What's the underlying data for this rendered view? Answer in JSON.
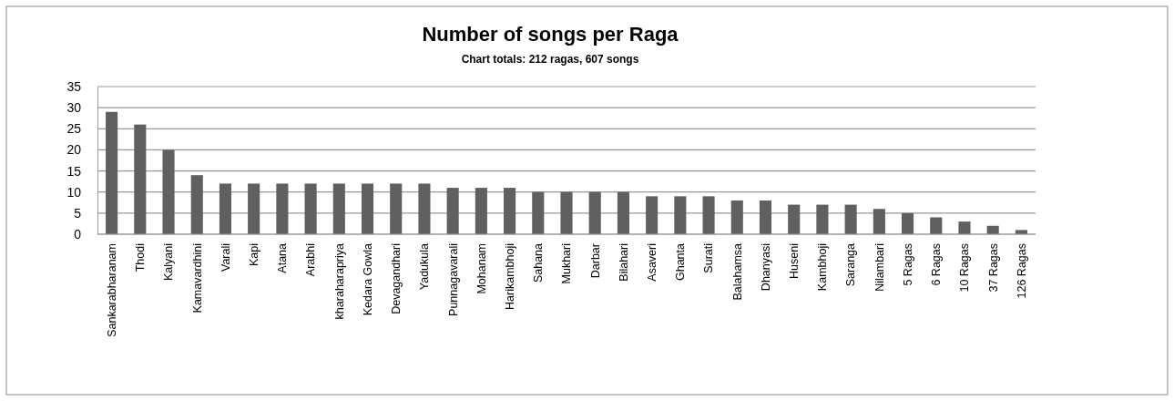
{
  "chart_data": {
    "type": "bar",
    "title": "Number of songs per Raga",
    "subtitle": "Chart totals: 212 ragas, 607 songs",
    "categories": [
      "Sankarabharanam",
      "Thodi",
      "Kalyani",
      "Kamavardhini",
      "Varali",
      "Kapi",
      "Atana",
      "Arabhi",
      "kharaharapriya",
      "Kedara Gowla",
      "Devagandhari",
      "Yadukula",
      "Punnagavarali",
      "Mohanam",
      "Harikambhoji",
      "Sahana",
      "Mukhari",
      "Darbar",
      "Bilahari",
      "Asaveri",
      "Ghanta",
      "Surati",
      "Balahamsa",
      "Dhanyasi",
      "Huseni",
      "Kambhoji",
      "Saranga",
      "Nilambari",
      "5 Ragas",
      "6 Ragas",
      "10 Ragas",
      "37 Ragas",
      "126 Ragas"
    ],
    "values": [
      29,
      26,
      20,
      14,
      12,
      12,
      12,
      12,
      12,
      12,
      12,
      12,
      11,
      11,
      11,
      10,
      10,
      10,
      10,
      9,
      9,
      9,
      8,
      8,
      7,
      7,
      7,
      6,
      5,
      4,
      3,
      2,
      1
    ],
    "color": "#606060",
    "ylim": [
      0,
      35
    ],
    "yticks": [
      0,
      5,
      10,
      15,
      20,
      25,
      30,
      35
    ],
    "grid": "y"
  }
}
